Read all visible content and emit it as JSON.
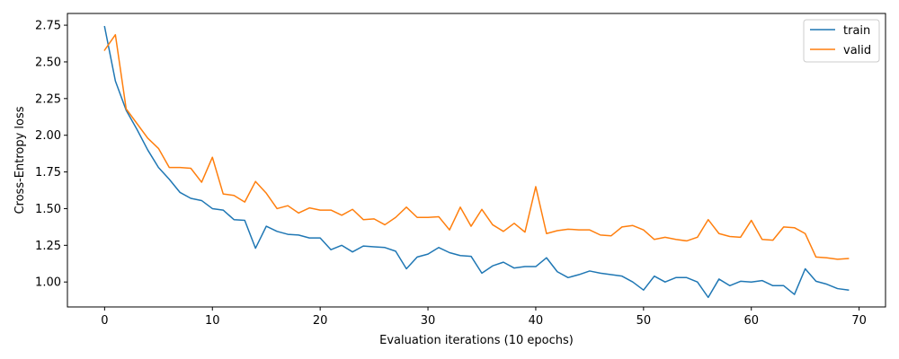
{
  "chart_data": {
    "type": "line",
    "title": "",
    "xlabel": "Evaluation iterations (10 epochs)",
    "ylabel": "Cross-Entropy loss",
    "xlim": [
      -3.45,
      72.45
    ],
    "ylim": [
      0.83,
      2.83
    ],
    "x_ticks": [
      0,
      10,
      20,
      30,
      40,
      50,
      60,
      70
    ],
    "x_tick_labels": [
      "0",
      "10",
      "20",
      "30",
      "40",
      "50",
      "60",
      "70"
    ],
    "y_ticks": [
      1.0,
      1.25,
      1.5,
      1.75,
      2.0,
      2.25,
      2.5,
      2.75
    ],
    "y_tick_labels": [
      "1.00",
      "1.25",
      "1.50",
      "1.75",
      "2.00",
      "2.25",
      "2.50",
      "2.75"
    ],
    "grid": false,
    "legend_position": "top-right",
    "x": [
      0,
      1,
      2,
      3,
      4,
      5,
      6,
      7,
      8,
      9,
      10,
      11,
      12,
      13,
      14,
      15,
      16,
      17,
      18,
      19,
      20,
      21,
      22,
      23,
      24,
      25,
      26,
      27,
      28,
      29,
      30,
      31,
      32,
      33,
      34,
      35,
      36,
      37,
      38,
      39,
      40,
      41,
      42,
      43,
      44,
      45,
      46,
      47,
      48,
      49,
      50,
      51,
      52,
      53,
      54,
      55,
      56,
      57,
      58,
      59,
      60,
      61,
      62,
      63,
      64,
      65,
      66,
      67,
      68,
      69
    ],
    "series": [
      {
        "name": "train",
        "color": "#1f77b4",
        "values": [
          2.74,
          2.37,
          2.17,
          2.04,
          1.9,
          1.78,
          1.7,
          1.61,
          1.57,
          1.555,
          1.5,
          1.49,
          1.425,
          1.42,
          1.23,
          1.38,
          1.345,
          1.325,
          1.32,
          1.3,
          1.3,
          1.22,
          1.25,
          1.205,
          1.245,
          1.24,
          1.235,
          1.21,
          1.09,
          1.17,
          1.19,
          1.235,
          1.2,
          1.18,
          1.175,
          1.06,
          1.11,
          1.135,
          1.095,
          1.105,
          1.105,
          1.165,
          1.07,
          1.03,
          1.05,
          1.075,
          1.06,
          1.05,
          1.04,
          1.0,
          0.945,
          1.04,
          1.0,
          1.03,
          1.03,
          1.0,
          0.895,
          1.02,
          0.975,
          1.005,
          1.0,
          1.01,
          0.975,
          0.975,
          0.915,
          1.09,
          1.005,
          0.985,
          0.955,
          0.945
        ]
      },
      {
        "name": "valid",
        "color": "#ff7f0e",
        "values": [
          2.58,
          2.685,
          2.18,
          2.08,
          1.98,
          1.91,
          1.78,
          1.78,
          1.775,
          1.68,
          1.85,
          1.6,
          1.59,
          1.545,
          1.685,
          1.605,
          1.5,
          1.52,
          1.47,
          1.505,
          1.49,
          1.49,
          1.455,
          1.495,
          1.425,
          1.43,
          1.39,
          1.44,
          1.51,
          1.44,
          1.44,
          1.445,
          1.355,
          1.51,
          1.38,
          1.495,
          1.39,
          1.345,
          1.4,
          1.34,
          1.65,
          1.33,
          1.35,
          1.36,
          1.355,
          1.355,
          1.32,
          1.315,
          1.375,
          1.385,
          1.355,
          1.29,
          1.305,
          1.29,
          1.28,
          1.305,
          1.425,
          1.33,
          1.31,
          1.305,
          1.42,
          1.29,
          1.285,
          1.375,
          1.37,
          1.33,
          1.17,
          1.165,
          1.155,
          1.16
        ]
      }
    ]
  }
}
